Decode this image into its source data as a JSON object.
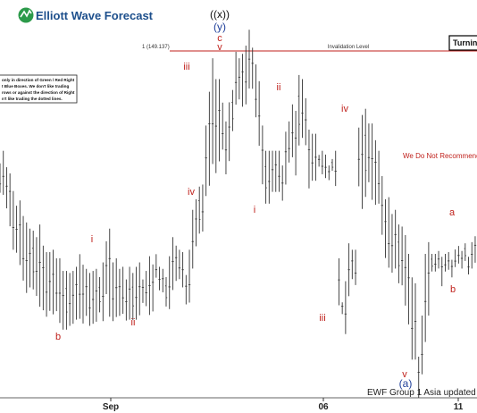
{
  "brand": {
    "name": "Elliott Wave Forecast"
  },
  "top_labels": {
    "degree_outer": "((x))",
    "degree_inner": "(y)",
    "top_c": "c",
    "top_v": "v"
  },
  "invalidation": {
    "fib": "1 (149.137)",
    "label": "Invalidation Level",
    "value": 149.137
  },
  "turning_box": "Turnin",
  "note_lines": [
    "only in direction of Green / Red Right",
    "t Blue Boxes. We don't like trading",
    "rows or against the direction of Right",
    "n't like trading the dotted lines."
  ],
  "recommend_text": "We Do Not Recommend B",
  "footer_text": "EWF Group 1 Asia updated",
  "colors": {
    "wave_red": "#c0221d",
    "wave_blue": "#1f3f9a",
    "invalidation_line": "#c0221d",
    "brand_blue": "#1d4f8c"
  },
  "chart_data": {
    "type": "ohlc",
    "x_ticks": [
      "Sep",
      "06",
      "11"
    ],
    "ylim": [
      136.9,
      150.2
    ],
    "bar_count": 146,
    "invalidation_level": 149.137,
    "highs": [
      144.88,
      145.31,
      144.75,
      144.54,
      143.94,
      143.44,
      143.62,
      143.09,
      142.87,
      142.66,
      142.59,
      142.37,
      142.8,
      142.08,
      141.86,
      141.86,
      141.94,
      141.65,
      141.65,
      141.22,
      141.22,
      141.15,
      141.22,
      141.36,
      141.79,
      141.43,
      141.29,
      141.15,
      141.22,
      141.29,
      141.01,
      141.51,
      142.23,
      142.66,
      141.51,
      141.65,
      141.29,
      141.36,
      140.93,
      141.36,
      141.15,
      141.36,
      141.51,
      140.93,
      141.22,
      141.72,
      141.44,
      141.79,
      141.36,
      141.29,
      141.01,
      141.72,
      142.37,
      142.08,
      141.94,
      141.86,
      141.08,
      141.94,
      143.3,
      143.66,
      144.09,
      144.16,
      146.17,
      147.32,
      148.46,
      147.75,
      147.75,
      146.95,
      146.31,
      146.96,
      147.38,
      148.68,
      148.46,
      148.61,
      148.89,
      149.43,
      148.82,
      148.25,
      147.68,
      146.17,
      145.31,
      145.31,
      145.31,
      145.31,
      145.31,
      144.81,
      145.96,
      146.31,
      146.89,
      146.67,
      147.89,
      147.75,
      147.1,
      146.03,
      145.89,
      145.89,
      145.17,
      145.31,
      145.18,
      144.81,
      145.03,
      145.31,
      141.65,
      140.15,
      140.87,
      142.16,
      141.94,
      141.94,
      146.1,
      146.53,
      146.74,
      146.24,
      146.24,
      145.67,
      145.31,
      144.45,
      143.66,
      143.73,
      143.16,
      143.3,
      142.8,
      142.73,
      142.44,
      141.8,
      141.0,
      140.8,
      138.3,
      139.7,
      141.8,
      142.2,
      141.8,
      141.8,
      141.9,
      141.7,
      141.8,
      141.86,
      141.6,
      141.95,
      142.07,
      141.9,
      142.16,
      141.7,
      142.2,
      142.4,
      141.8,
      141.7
    ],
    "lows": [
      143.88,
      143.81,
      143.35,
      142.74,
      141.94,
      141.84,
      141.42,
      140.89,
      140.47,
      140.66,
      140.59,
      140.37,
      140.0,
      139.88,
      139.66,
      139.86,
      139.74,
      139.85,
      139.45,
      139.22,
      139.22,
      139.35,
      139.42,
      139.56,
      139.59,
      139.43,
      139.69,
      139.35,
      139.42,
      139.49,
      139.81,
      139.51,
      140.43,
      139.66,
      139.51,
      139.65,
      139.69,
      139.76,
      139.53,
      139.56,
      139.55,
      139.56,
      139.71,
      140.13,
      140.02,
      139.72,
      139.84,
      140.99,
      140.56,
      140.49,
      140.01,
      139.92,
      140.57,
      140.88,
      140.94,
      140.66,
      140.08,
      140.14,
      141.3,
      142.06,
      142.49,
      142.56,
      143.77,
      144.12,
      144.86,
      144.55,
      144.95,
      145.35,
      144.51,
      144.96,
      145.98,
      146.88,
      147.06,
      146.81,
      146.89,
      147.43,
      147.42,
      146.45,
      145.48,
      144.17,
      143.51,
      143.51,
      143.91,
      143.91,
      143.91,
      143.61,
      144.16,
      144.91,
      145.09,
      144.47,
      145.49,
      145.75,
      145.5,
      144.03,
      144.29,
      144.29,
      144.77,
      144.51,
      144.38,
      144.31,
      144.63,
      144.11,
      140.05,
      139.75,
      139.07,
      140.36,
      140.94,
      140.74,
      144.1,
      143.33,
      143.74,
      144.24,
      143.64,
      143.47,
      143.51,
      142.45,
      141.66,
      141.33,
      141.16,
      141.3,
      140.8,
      140.73,
      140.04,
      139.4,
      138.2,
      138.2,
      136.9,
      137.7,
      138.8,
      139.7,
      141.2,
      141.2,
      141.3,
      140.7,
      141.2,
      141.26,
      141.0,
      141.35,
      141.47,
      141.3,
      141.56,
      141.1,
      141.3,
      141.5,
      141.0,
      140.9
    ]
  },
  "wave_labels": [
    {
      "text": "b",
      "x": 145.7,
      "y": 140.6,
      "color": "red"
    },
    {
      "text": "i",
      "x": 141.6,
      "y": 144.05,
      "color": "red"
    },
    {
      "text": "ii",
      "x": 140.1,
      "y": 143.8,
      "color": "red"
    },
    {
      "text": "iii",
      "x": 148.4,
      "y": 148.8,
      "color": "red"
    },
    {
      "text": "iv",
      "x": 144.9,
      "y": 141.7,
      "color": "red"
    },
    {
      "text": "i",
      "x": 144.2,
      "y": 154.1,
      "color": "red"
    },
    {
      "text": "ii",
      "x": 147.5,
      "y": 166.0,
      "color": "red"
    },
    {
      "text": "iii",
      "x": 140.3,
      "y": 193.6,
      "color": "red"
    },
    {
      "text": "iv",
      "x": 146.8,
      "y": 206.5,
      "color": "red"
    },
    {
      "text": "v",
      "x": 137.6,
      "y": 245.0,
      "color": "red"
    },
    {
      "text": "a",
      "x": 143.4,
      "y": 264.0,
      "color": "red"
    },
    {
      "text": "b",
      "x": 140.9,
      "y": 264.0,
      "color": "red"
    }
  ]
}
